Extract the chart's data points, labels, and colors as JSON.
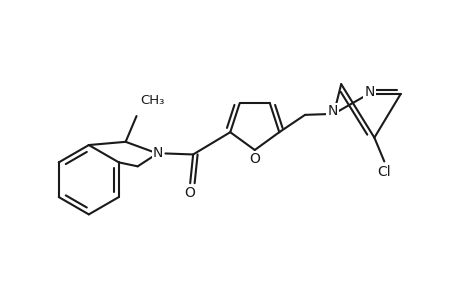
{
  "bg_color": "#ffffff",
  "line_color": "#1a1a1a",
  "lw": 1.5,
  "fs": 10,
  "xlim": [
    0,
    9.2
  ],
  "ylim": [
    0,
    6.0
  ],
  "figsize": [
    4.6,
    3.0
  ],
  "dpi": 100
}
